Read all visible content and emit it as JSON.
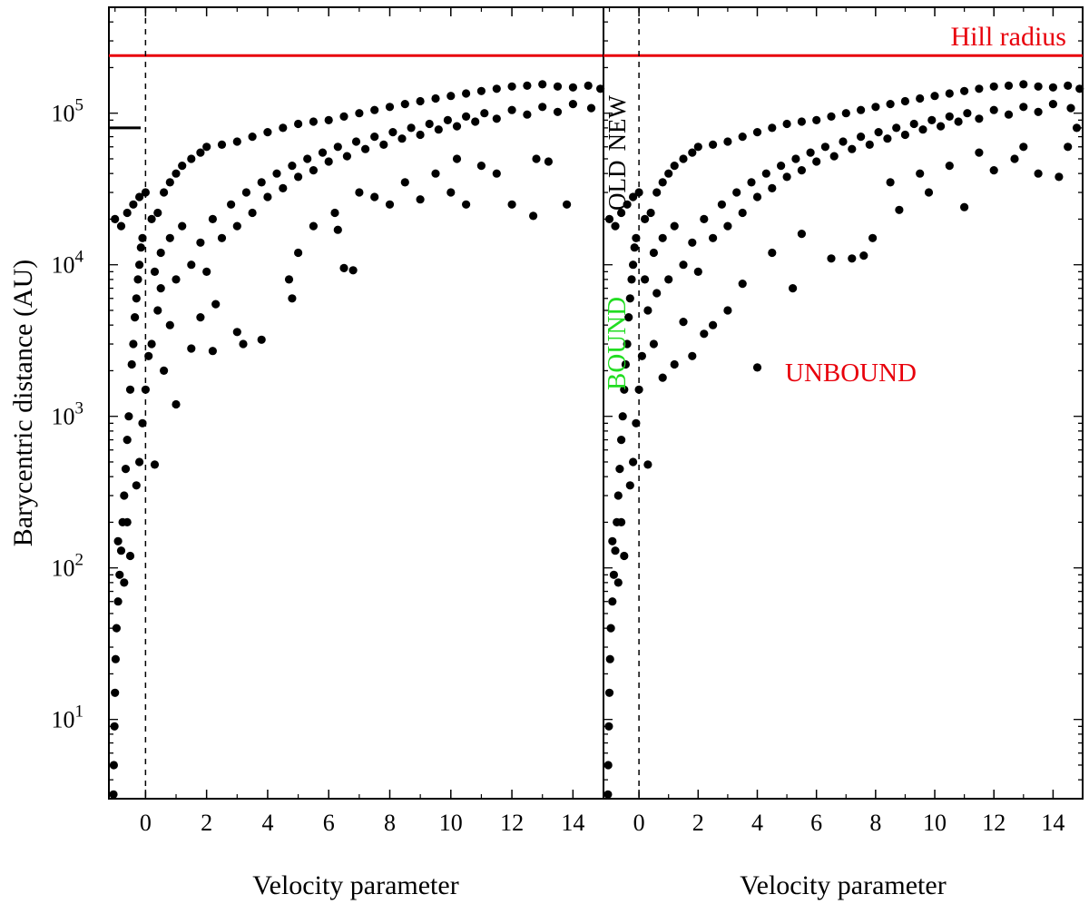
{
  "chart_data": [
    {
      "panel": "left",
      "type": "scatter",
      "xlabel": "Velocity parameter",
      "ylabel": "Barycentric distance (AU)",
      "xlim": [
        -1.2,
        15
      ],
      "ylim": [
        3,
        500000
      ],
      "y_scale": "log",
      "x_ticks": [
        0,
        2,
        4,
        6,
        8,
        10,
        12,
        14
      ],
      "y_ticks": [
        {
          "value": 10,
          "base": "10",
          "exp": "1"
        },
        {
          "value": 100,
          "base": "10",
          "exp": "2"
        },
        {
          "value": 1000,
          "base": "10",
          "exp": "3"
        },
        {
          "value": 10000,
          "base": "10",
          "exp": "4"
        },
        {
          "value": 100000,
          "base": "10",
          "exp": "5"
        }
      ],
      "reference_lines": [
        {
          "orientation": "horizontal",
          "value": 240000,
          "color": "#e8000b",
          "style": "solid",
          "label": "Hill radius"
        },
        {
          "orientation": "vertical",
          "value": 0,
          "color": "#000000",
          "style": "dashed"
        }
      ],
      "boundary_marker": {
        "value": 80000
      },
      "points_estimated": true,
      "points": [
        [
          -1.05,
          3.2
        ],
        [
          -1.04,
          5
        ],
        [
          -1.02,
          9
        ],
        [
          -1.0,
          15
        ],
        [
          -0.98,
          25
        ],
        [
          -0.95,
          40
        ],
        [
          -0.9,
          60
        ],
        [
          -0.85,
          90
        ],
        [
          -0.8,
          130
        ],
        [
          -0.75,
          200
        ],
        [
          -0.7,
          300
        ],
        [
          -0.65,
          450
        ],
        [
          -0.6,
          700
        ],
        [
          -0.55,
          1000
        ],
        [
          -0.5,
          1500
        ],
        [
          -0.45,
          2200
        ],
        [
          -0.4,
          3000
        ],
        [
          -0.35,
          4500
        ],
        [
          -0.3,
          6000
        ],
        [
          -0.25,
          8000
        ],
        [
          -0.2,
          10000
        ],
        [
          -0.15,
          13000
        ],
        [
          -0.1,
          15000
        ],
        [
          -0.9,
          150
        ],
        [
          -0.7,
          80
        ],
        [
          -0.6,
          200
        ],
        [
          -0.5,
          120
        ],
        [
          -0.3,
          350
        ],
        [
          -0.2,
          500
        ],
        [
          -0.1,
          900
        ],
        [
          0.0,
          1500
        ],
        [
          0.1,
          2500
        ],
        [
          0.3,
          480
        ],
        [
          -1.0,
          20000
        ],
        [
          -0.8,
          18000
        ],
        [
          -0.6,
          22000
        ],
        [
          -0.4,
          25000
        ],
        [
          -0.2,
          28000
        ],
        [
          0.0,
          30000
        ],
        [
          0.2,
          20000
        ],
        [
          0.4,
          22000
        ],
        [
          0.6,
          30000
        ],
        [
          0.8,
          35000
        ],
        [
          1.0,
          40000
        ],
        [
          1.2,
          45000
        ],
        [
          1.5,
          50000
        ],
        [
          1.8,
          55000
        ],
        [
          2.0,
          60000
        ],
        [
          2.5,
          62000
        ],
        [
          3.0,
          65000
        ],
        [
          3.5,
          70000
        ],
        [
          4.0,
          75000
        ],
        [
          4.5,
          80000
        ],
        [
          5.0,
          85000
        ],
        [
          5.5,
          88000
        ],
        [
          6.0,
          90000
        ],
        [
          6.5,
          95000
        ],
        [
          7.0,
          100000
        ],
        [
          7.5,
          105000
        ],
        [
          8.0,
          110000
        ],
        [
          8.5,
          115000
        ],
        [
          9.0,
          120000
        ],
        [
          9.5,
          125000
        ],
        [
          10.0,
          130000
        ],
        [
          10.5,
          135000
        ],
        [
          11.0,
          140000
        ],
        [
          11.5,
          145000
        ],
        [
          12.0,
          150000
        ],
        [
          12.5,
          152000
        ],
        [
          13.0,
          155000
        ],
        [
          13.5,
          150000
        ],
        [
          14.0,
          148000
        ],
        [
          14.5,
          152000
        ],
        [
          14.9,
          145000
        ],
        [
          0.5,
          12000
        ],
        [
          0.8,
          15000
        ],
        [
          1.0,
          8000
        ],
        [
          1.2,
          18000
        ],
        [
          1.5,
          10000
        ],
        [
          1.8,
          14000
        ],
        [
          2.0,
          9000
        ],
        [
          2.2,
          20000
        ],
        [
          2.5,
          15000
        ],
        [
          2.8,
          25000
        ],
        [
          3.0,
          18000
        ],
        [
          3.3,
          30000
        ],
        [
          3.5,
          22000
        ],
        [
          3.8,
          35000
        ],
        [
          4.0,
          28000
        ],
        [
          4.3,
          40000
        ],
        [
          4.5,
          32000
        ],
        [
          4.8,
          45000
        ],
        [
          5.0,
          38000
        ],
        [
          5.3,
          50000
        ],
        [
          5.5,
          42000
        ],
        [
          5.8,
          55000
        ],
        [
          6.0,
          48000
        ],
        [
          6.3,
          60000
        ],
        [
          6.6,
          52000
        ],
        [
          6.9,
          65000
        ],
        [
          7.2,
          58000
        ],
        [
          7.5,
          70000
        ],
        [
          7.8,
          62000
        ],
        [
          8.1,
          75000
        ],
        [
          8.4,
          68000
        ],
        [
          8.7,
          80000
        ],
        [
          9.0,
          72000
        ],
        [
          9.3,
          85000
        ],
        [
          9.6,
          78000
        ],
        [
          9.9,
          90000
        ],
        [
          10.2,
          82000
        ],
        [
          10.5,
          95000
        ],
        [
          10.8,
          88000
        ],
        [
          11.1,
          100000
        ],
        [
          11.5,
          92000
        ],
        [
          12.0,
          105000
        ],
        [
          12.5,
          98000
        ],
        [
          13.0,
          110000
        ],
        [
          13.5,
          102000
        ],
        [
          14.0,
          115000
        ],
        [
          14.6,
          108000
        ],
        [
          1.0,
          1200
        ],
        [
          1.5,
          2800
        ],
        [
          2.2,
          2700
        ],
        [
          3.0,
          3600
        ],
        [
          3.2,
          3000
        ],
        [
          3.8,
          3200
        ],
        [
          4.8,
          6000
        ],
        [
          4.7,
          8000
        ],
        [
          5.0,
          12000
        ],
        [
          6.5,
          9500
        ],
        [
          6.8,
          9200
        ],
        [
          6.3,
          17000
        ],
        [
          7.0,
          30000
        ],
        [
          8.0,
          25000
        ],
        [
          9.0,
          27000
        ],
        [
          10.0,
          30000
        ],
        [
          10.5,
          25000
        ],
        [
          11.5,
          40000
        ],
        [
          12.0,
          25000
        ],
        [
          12.7,
          21000
        ],
        [
          13.2,
          48000
        ],
        [
          13.8,
          25000
        ],
        [
          12.8,
          50000
        ],
        [
          9.5,
          40000
        ],
        [
          10.2,
          50000
        ],
        [
          11.0,
          45000
        ],
        [
          8.5,
          35000
        ],
        [
          7.5,
          28000
        ],
        [
          6.2,
          22000
        ],
        [
          5.5,
          18000
        ],
        [
          0.2,
          3000
        ],
        [
          0.4,
          5000
        ],
        [
          0.6,
          2000
        ],
        [
          0.8,
          4000
        ],
        [
          0.5,
          7000
        ],
        [
          0.3,
          9000
        ],
        [
          1.8,
          4500
        ],
        [
          2.3,
          5500
        ]
      ]
    },
    {
      "panel": "right",
      "type": "scatter",
      "xlabel": "Velocity parameter",
      "xlim": [
        -1.2,
        15
      ],
      "ylim": [
        3,
        500000
      ],
      "y_scale": "log",
      "x_ticks": [
        0,
        2,
        4,
        6,
        8,
        10,
        12,
        14
      ],
      "reference_lines": [
        {
          "orientation": "horizontal",
          "value": 240000,
          "color": "#e8000b",
          "style": "solid",
          "label": "Hill radius"
        },
        {
          "orientation": "vertical",
          "value": 0,
          "color": "#000000",
          "style": "dashed"
        }
      ],
      "annotations": [
        {
          "text": "OLD",
          "color": "#000000",
          "rotated": true
        },
        {
          "text": "NEW",
          "color": "#000000",
          "rotated": true
        },
        {
          "text": "BOUND",
          "color": "#22dd22",
          "rotated": true
        },
        {
          "text": "UNBOUND",
          "color": "#e8000b",
          "rotated": false
        }
      ],
      "points_estimated": true,
      "points": [
        [
          -1.05,
          3.2
        ],
        [
          -1.04,
          5
        ],
        [
          -1.02,
          9
        ],
        [
          -1.0,
          15
        ],
        [
          -0.98,
          25
        ],
        [
          -0.95,
          40
        ],
        [
          -0.9,
          60
        ],
        [
          -0.85,
          90
        ],
        [
          -0.8,
          130
        ],
        [
          -0.75,
          200
        ],
        [
          -0.7,
          300
        ],
        [
          -0.65,
          450
        ],
        [
          -0.6,
          700
        ],
        [
          -0.55,
          1000
        ],
        [
          -0.5,
          1500
        ],
        [
          -0.45,
          2200
        ],
        [
          -0.4,
          3000
        ],
        [
          -0.35,
          4500
        ],
        [
          -0.3,
          6000
        ],
        [
          -0.25,
          8000
        ],
        [
          -0.2,
          10000
        ],
        [
          -0.15,
          13000
        ],
        [
          -0.1,
          15000
        ],
        [
          -0.9,
          150
        ],
        [
          -0.7,
          80
        ],
        [
          -0.6,
          200
        ],
        [
          -0.5,
          120
        ],
        [
          -0.3,
          350
        ],
        [
          -0.2,
          500
        ],
        [
          -0.1,
          900
        ],
        [
          0.0,
          1500
        ],
        [
          0.1,
          2500
        ],
        [
          0.3,
          480
        ],
        [
          -1.0,
          20000
        ],
        [
          -0.8,
          18000
        ],
        [
          -0.6,
          22000
        ],
        [
          -0.4,
          25000
        ],
        [
          -0.2,
          28000
        ],
        [
          0.0,
          30000
        ],
        [
          0.2,
          20000
        ],
        [
          0.4,
          22000
        ],
        [
          0.6,
          30000
        ],
        [
          0.8,
          35000
        ],
        [
          1.0,
          40000
        ],
        [
          1.2,
          45000
        ],
        [
          1.5,
          50000
        ],
        [
          1.8,
          55000
        ],
        [
          2.0,
          60000
        ],
        [
          2.5,
          62000
        ],
        [
          3.0,
          65000
        ],
        [
          3.5,
          70000
        ],
        [
          4.0,
          75000
        ],
        [
          4.5,
          80000
        ],
        [
          5.0,
          85000
        ],
        [
          5.5,
          88000
        ],
        [
          6.0,
          90000
        ],
        [
          6.5,
          95000
        ],
        [
          7.0,
          100000
        ],
        [
          7.5,
          105000
        ],
        [
          8.0,
          110000
        ],
        [
          8.5,
          115000
        ],
        [
          9.0,
          120000
        ],
        [
          9.5,
          125000
        ],
        [
          10.0,
          130000
        ],
        [
          10.5,
          135000
        ],
        [
          11.0,
          140000
        ],
        [
          11.5,
          145000
        ],
        [
          12.0,
          150000
        ],
        [
          12.5,
          152000
        ],
        [
          13.0,
          155000
        ],
        [
          13.5,
          150000
        ],
        [
          14.0,
          148000
        ],
        [
          14.5,
          152000
        ],
        [
          14.9,
          145000
        ],
        [
          0.5,
          12000
        ],
        [
          0.8,
          15000
        ],
        [
          1.0,
          8000
        ],
        [
          1.2,
          18000
        ],
        [
          1.5,
          10000
        ],
        [
          1.8,
          14000
        ],
        [
          2.0,
          9000
        ],
        [
          2.2,
          20000
        ],
        [
          2.5,
          15000
        ],
        [
          2.8,
          25000
        ],
        [
          3.0,
          18000
        ],
        [
          3.3,
          30000
        ],
        [
          3.5,
          22000
        ],
        [
          3.8,
          35000
        ],
        [
          4.0,
          28000
        ],
        [
          4.3,
          40000
        ],
        [
          4.5,
          32000
        ],
        [
          4.8,
          45000
        ],
        [
          5.0,
          38000
        ],
        [
          5.3,
          50000
        ],
        [
          5.5,
          42000
        ],
        [
          5.8,
          55000
        ],
        [
          6.0,
          48000
        ],
        [
          6.3,
          60000
        ],
        [
          6.6,
          52000
        ],
        [
          6.9,
          65000
        ],
        [
          7.2,
          58000
        ],
        [
          7.5,
          70000
        ],
        [
          7.8,
          62000
        ],
        [
          8.1,
          75000
        ],
        [
          8.4,
          68000
        ],
        [
          8.7,
          80000
        ],
        [
          9.0,
          72000
        ],
        [
          9.3,
          85000
        ],
        [
          9.6,
          78000
        ],
        [
          9.9,
          90000
        ],
        [
          10.2,
          82000
        ],
        [
          10.5,
          95000
        ],
        [
          10.8,
          88000
        ],
        [
          11.1,
          100000
        ],
        [
          11.5,
          92000
        ],
        [
          12.0,
          105000
        ],
        [
          12.5,
          98000
        ],
        [
          13.0,
          110000
        ],
        [
          13.5,
          102000
        ],
        [
          14.0,
          115000
        ],
        [
          14.6,
          108000
        ],
        [
          0.8,
          1800
        ],
        [
          1.8,
          2500
        ],
        [
          4.0,
          2100
        ],
        [
          5.2,
          7000
        ],
        [
          6.5,
          11000
        ],
        [
          7.2,
          11000
        ],
        [
          7.6,
          11500
        ],
        [
          7.9,
          15000
        ],
        [
          8.8,
          23000
        ],
        [
          9.8,
          30000
        ],
        [
          11.0,
          24000
        ],
        [
          12.0,
          42000
        ],
        [
          12.7,
          50000
        ],
        [
          13.5,
          40000
        ],
        [
          14.2,
          38000
        ],
        [
          14.8,
          80000
        ],
        [
          14.5,
          60000
        ],
        [
          13.0,
          60000
        ],
        [
          11.5,
          55000
        ],
        [
          10.5,
          45000
        ],
        [
          9.5,
          40000
        ],
        [
          8.5,
          35000
        ],
        [
          3.0,
          5000
        ],
        [
          2.5,
          4000
        ],
        [
          3.5,
          7500
        ],
        [
          4.5,
          12000
        ],
        [
          5.5,
          16000
        ],
        [
          1.2,
          2200
        ],
        [
          2.2,
          3500
        ],
        [
          1.5,
          4200
        ],
        [
          0.3,
          5000
        ],
        [
          0.5,
          3000
        ],
        [
          0.2,
          8000
        ],
        [
          0.6,
          6500
        ]
      ]
    }
  ]
}
